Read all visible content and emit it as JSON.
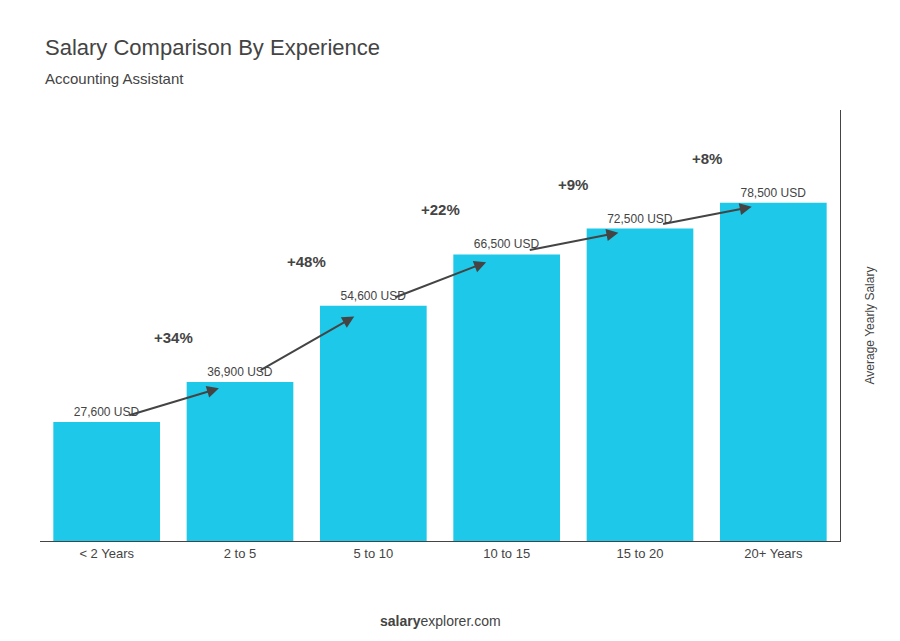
{
  "chart_data": {
    "type": "bar",
    "title": "Salary Comparison By Experience",
    "subtitle": "Accounting Assistant",
    "ylabel": "Average Yearly Salary",
    "categories": [
      "< 2 Years",
      "2 to 5",
      "5 to 10",
      "10 to 15",
      "15 to 20",
      "20+ Years"
    ],
    "values": [
      27600,
      36900,
      54600,
      66500,
      72500,
      78500
    ],
    "value_labels": [
      "27,600 USD",
      "36,900 USD",
      "54,600 USD",
      "66,500 USD",
      "72,500 USD",
      "78,500 USD"
    ],
    "data_labels": true,
    "color": "#1EC8E8",
    "annotations": [
      {
        "text": "+34%",
        "from": "< 2 Years",
        "to": "2 to 5"
      },
      {
        "text": "+48%",
        "from": "2 to 5",
        "to": "5 to 10"
      },
      {
        "text": "+22%",
        "from": "5 to 10",
        "to": "10 to 15"
      },
      {
        "text": "+9%",
        "from": "10 to 15",
        "to": "15 to 20"
      },
      {
        "text": "+8%",
        "from": "15 to 20",
        "to": "20+ Years"
      }
    ],
    "footer": {
      "bold": "salary",
      "normal": "explorer.com"
    },
    "ylim": [
      0,
      100000
    ],
    "tick_labels": "x",
    "grid": false
  }
}
